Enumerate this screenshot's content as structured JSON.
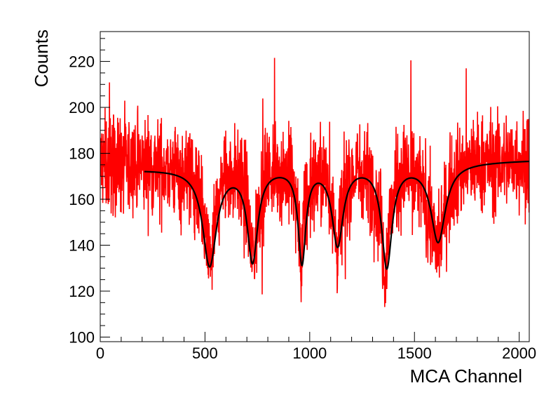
{
  "chart_data": {
    "type": "line",
    "title": "",
    "xlabel": "MCA Channel",
    "ylabel": "Counts",
    "xlim": [
      0,
      2048
    ],
    "ylim": [
      98,
      233
    ],
    "x_ticks": [
      0,
      500,
      1000,
      1500,
      2000
    ],
    "x_tick_labels": [
      "0",
      "500",
      "1000",
      "1500",
      "2000"
    ],
    "y_ticks": [
      100,
      120,
      140,
      160,
      180,
      200,
      220
    ],
    "y_tick_labels": [
      "100",
      "120",
      "140",
      "160",
      "180",
      "200",
      "220"
    ],
    "grid": false,
    "legend": "none",
    "series": [
      {
        "kind": "histogram",
        "color": "#ff0000",
        "description_values": "noisy counts per channel, baseline ~173-177 with six absorption dips",
        "baseline": 175,
        "noise_halfwidth": 18,
        "x": [
          0,
          40,
          80,
          120,
          160,
          200,
          240,
          280,
          320,
          360,
          400,
          440,
          470,
          500,
          520,
          540,
          560,
          590,
          620,
          660,
          700,
          720,
          740,
          760,
          790,
          830,
          870,
          910,
          940,
          960,
          980,
          1010,
          1040,
          1080,
          1110,
          1130,
          1150,
          1180,
          1220,
          1260,
          1300,
          1340,
          1360,
          1380,
          1410,
          1450,
          1490,
          1530,
          1580,
          1605,
          1620,
          1640,
          1680,
          1720,
          1780,
          1840,
          1900,
          1960,
          2020,
          2048
        ],
        "y": [
          176,
          175,
          176,
          174,
          175,
          174,
          175,
          173,
          174,
          172,
          172,
          168,
          160,
          145,
          133,
          140,
          158,
          168,
          171,
          170,
          160,
          135,
          140,
          160,
          169,
          172,
          172,
          169,
          155,
          131,
          155,
          167,
          170,
          168,
          158,
          137,
          152,
          166,
          171,
          171,
          168,
          150,
          128,
          148,
          166,
          171,
          171,
          166,
          150,
          139,
          140,
          152,
          168,
          173,
          175,
          176,
          176,
          177,
          177,
          177
        ]
      },
      {
        "kind": "fit",
        "color": "#000000",
        "x_range": [
          210,
          2048
        ],
        "baseline_start": 173,
        "baseline_end": 177,
        "dips": [
          {
            "center": 522,
            "depth": 42,
            "width": 40
          },
          {
            "center": 727,
            "depth": 40,
            "width": 30
          },
          {
            "center": 963,
            "depth": 41,
            "width": 22
          },
          {
            "center": 1133,
            "depth": 34,
            "width": 32
          },
          {
            "center": 1368,
            "depth": 44,
            "width": 30
          },
          {
            "center": 1613,
            "depth": 34,
            "width": 42
          }
        ]
      }
    ]
  }
}
